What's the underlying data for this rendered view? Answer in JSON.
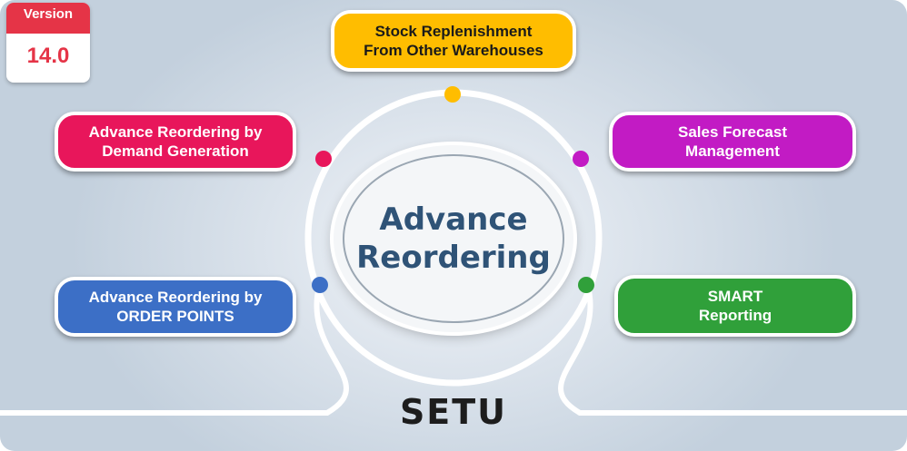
{
  "badge": {
    "label": "Version",
    "value": "14.0"
  },
  "center": {
    "line1": "Advance",
    "line2": "Reordering"
  },
  "brand": "SETU",
  "features": [
    {
      "text": "Stock Replenishment\nFrom Other Warehouses",
      "color": "#ffbd00",
      "text_color": "#1a1a1a"
    },
    {
      "text": "Advance Reordering by\nDemand Generation",
      "color": "#e8165b",
      "text_color": "#ffffff"
    },
    {
      "text": "Sales Forecast\nManagement",
      "color": "#c21bc4",
      "text_color": "#ffffff"
    },
    {
      "text": "Advance Reordering by\nORDER POINTS",
      "color": "#3c6fc6",
      "text_color": "#ffffff"
    },
    {
      "text": "SMART\nReporting",
      "color": "#30a03a",
      "text_color": "#ffffff"
    }
  ],
  "colors": {
    "ring": "#ffffff",
    "title": "#2f5377",
    "badge": "#e53447"
  }
}
